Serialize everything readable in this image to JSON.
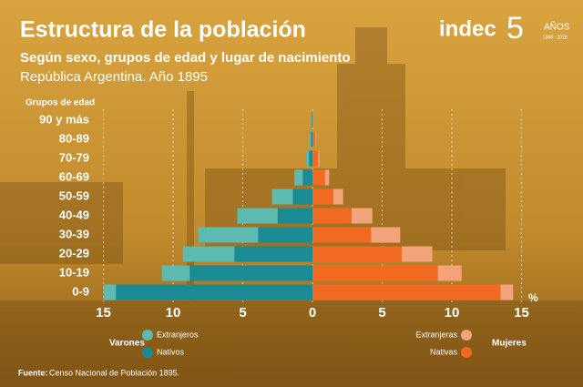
{
  "chart_data": {
    "type": "pyramid",
    "title": "Estructura de la población",
    "subtitle": "Según sexo, grupos de edad y lugar de nacimiento",
    "subtitle2": "República Argentina. Año 1895",
    "y_label": "Grupos de edad",
    "x_unit": "%",
    "categories": [
      "0-9",
      "10-19",
      "20-29",
      "30-39",
      "40-49",
      "50-59",
      "60-69",
      "70-79",
      "80-89",
      "90 y más"
    ],
    "side_labels": {
      "left": "Varones",
      "right": "Mujeres"
    },
    "series": [
      {
        "name": "Nativos",
        "color": "#1a8a94",
        "side": "left",
        "values": [
          14.1,
          8.8,
          5.6,
          3.9,
          2.5,
          1.4,
          0.7,
          0.25,
          0.1,
          0.05
        ]
      },
      {
        "name": "Extranjeros",
        "color": "#5cbab0",
        "side": "left",
        "values": [
          0.9,
          2.0,
          3.7,
          4.3,
          2.9,
          1.5,
          0.6,
          0.2,
          0.1,
          0.05
        ]
      },
      {
        "name": "Nativas",
        "color": "#f26a21",
        "side": "right",
        "values": [
          13.5,
          9.0,
          6.4,
          4.2,
          2.8,
          1.5,
          0.9,
          0.4,
          0.2,
          0.05
        ]
      },
      {
        "name": "Extranjeras",
        "color": "#f4a47a",
        "side": "right",
        "values": [
          0.9,
          1.7,
          2.2,
          2.1,
          1.5,
          0.7,
          0.3,
          0.1,
          0.05,
          0.02
        ]
      }
    ],
    "xlim": [
      0,
      15
    ],
    "xticks": [
      0,
      5,
      10,
      15
    ],
    "grid": true,
    "source_label": "Fuente:",
    "source_text": "Censo Nacional de Población 1895.",
    "logo": {
      "text": "indec",
      "number": "5",
      "caption": "AÑOS",
      "years": "1968 · 2018"
    }
  }
}
